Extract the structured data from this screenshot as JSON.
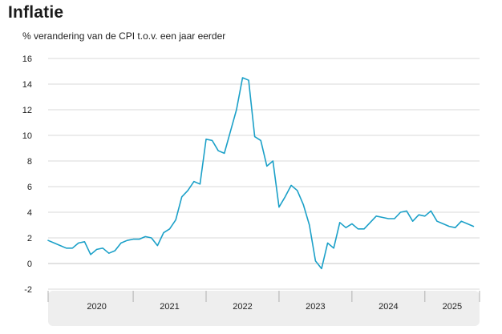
{
  "chart_data": {
    "type": "line",
    "title": "Inflatie",
    "subtitle": "% verandering van de CPI t.o.v. een jaar eerder",
    "xlabel": "",
    "ylabel": "",
    "ylim": [
      -2,
      16
    ],
    "yticks": [
      -2,
      0,
      2,
      4,
      6,
      8,
      10,
      12,
      14,
      16
    ],
    "x_start": "2019-11",
    "x_end": "2025-10",
    "year_labels": [
      "2020",
      "2021",
      "2022",
      "2023",
      "2024",
      "2025"
    ],
    "grid": true,
    "legend": "none",
    "colors": {
      "line": "#1ba0c8",
      "axis_band": "#eeeeee",
      "band_divider": "#b0b0b0"
    },
    "series": [
      {
        "name": "CPI",
        "values": [
          1.8,
          1.6,
          1.4,
          1.2,
          1.2,
          1.6,
          1.7,
          0.7,
          1.1,
          1.2,
          0.8,
          1.0,
          1.6,
          1.8,
          1.9,
          1.9,
          2.1,
          2.0,
          1.4,
          2.4,
          2.7,
          3.4,
          5.2,
          5.7,
          6.4,
          6.2,
          9.7,
          9.6,
          8.8,
          8.6,
          10.3,
          12.0,
          14.5,
          14.3,
          9.9,
          9.6,
          7.6,
          8.0,
          4.4,
          5.2,
          6.1,
          5.7,
          4.6,
          3.0,
          0.2,
          -0.4,
          1.6,
          1.2,
          3.2,
          2.8,
          3.1,
          2.7,
          2.7,
          3.2,
          3.7,
          3.6,
          3.5,
          3.5,
          4.0,
          4.1,
          3.3,
          3.8,
          3.7,
          4.1,
          3.3,
          3.1,
          2.9,
          2.8,
          3.3,
          3.1,
          2.9
        ]
      }
    ]
  }
}
